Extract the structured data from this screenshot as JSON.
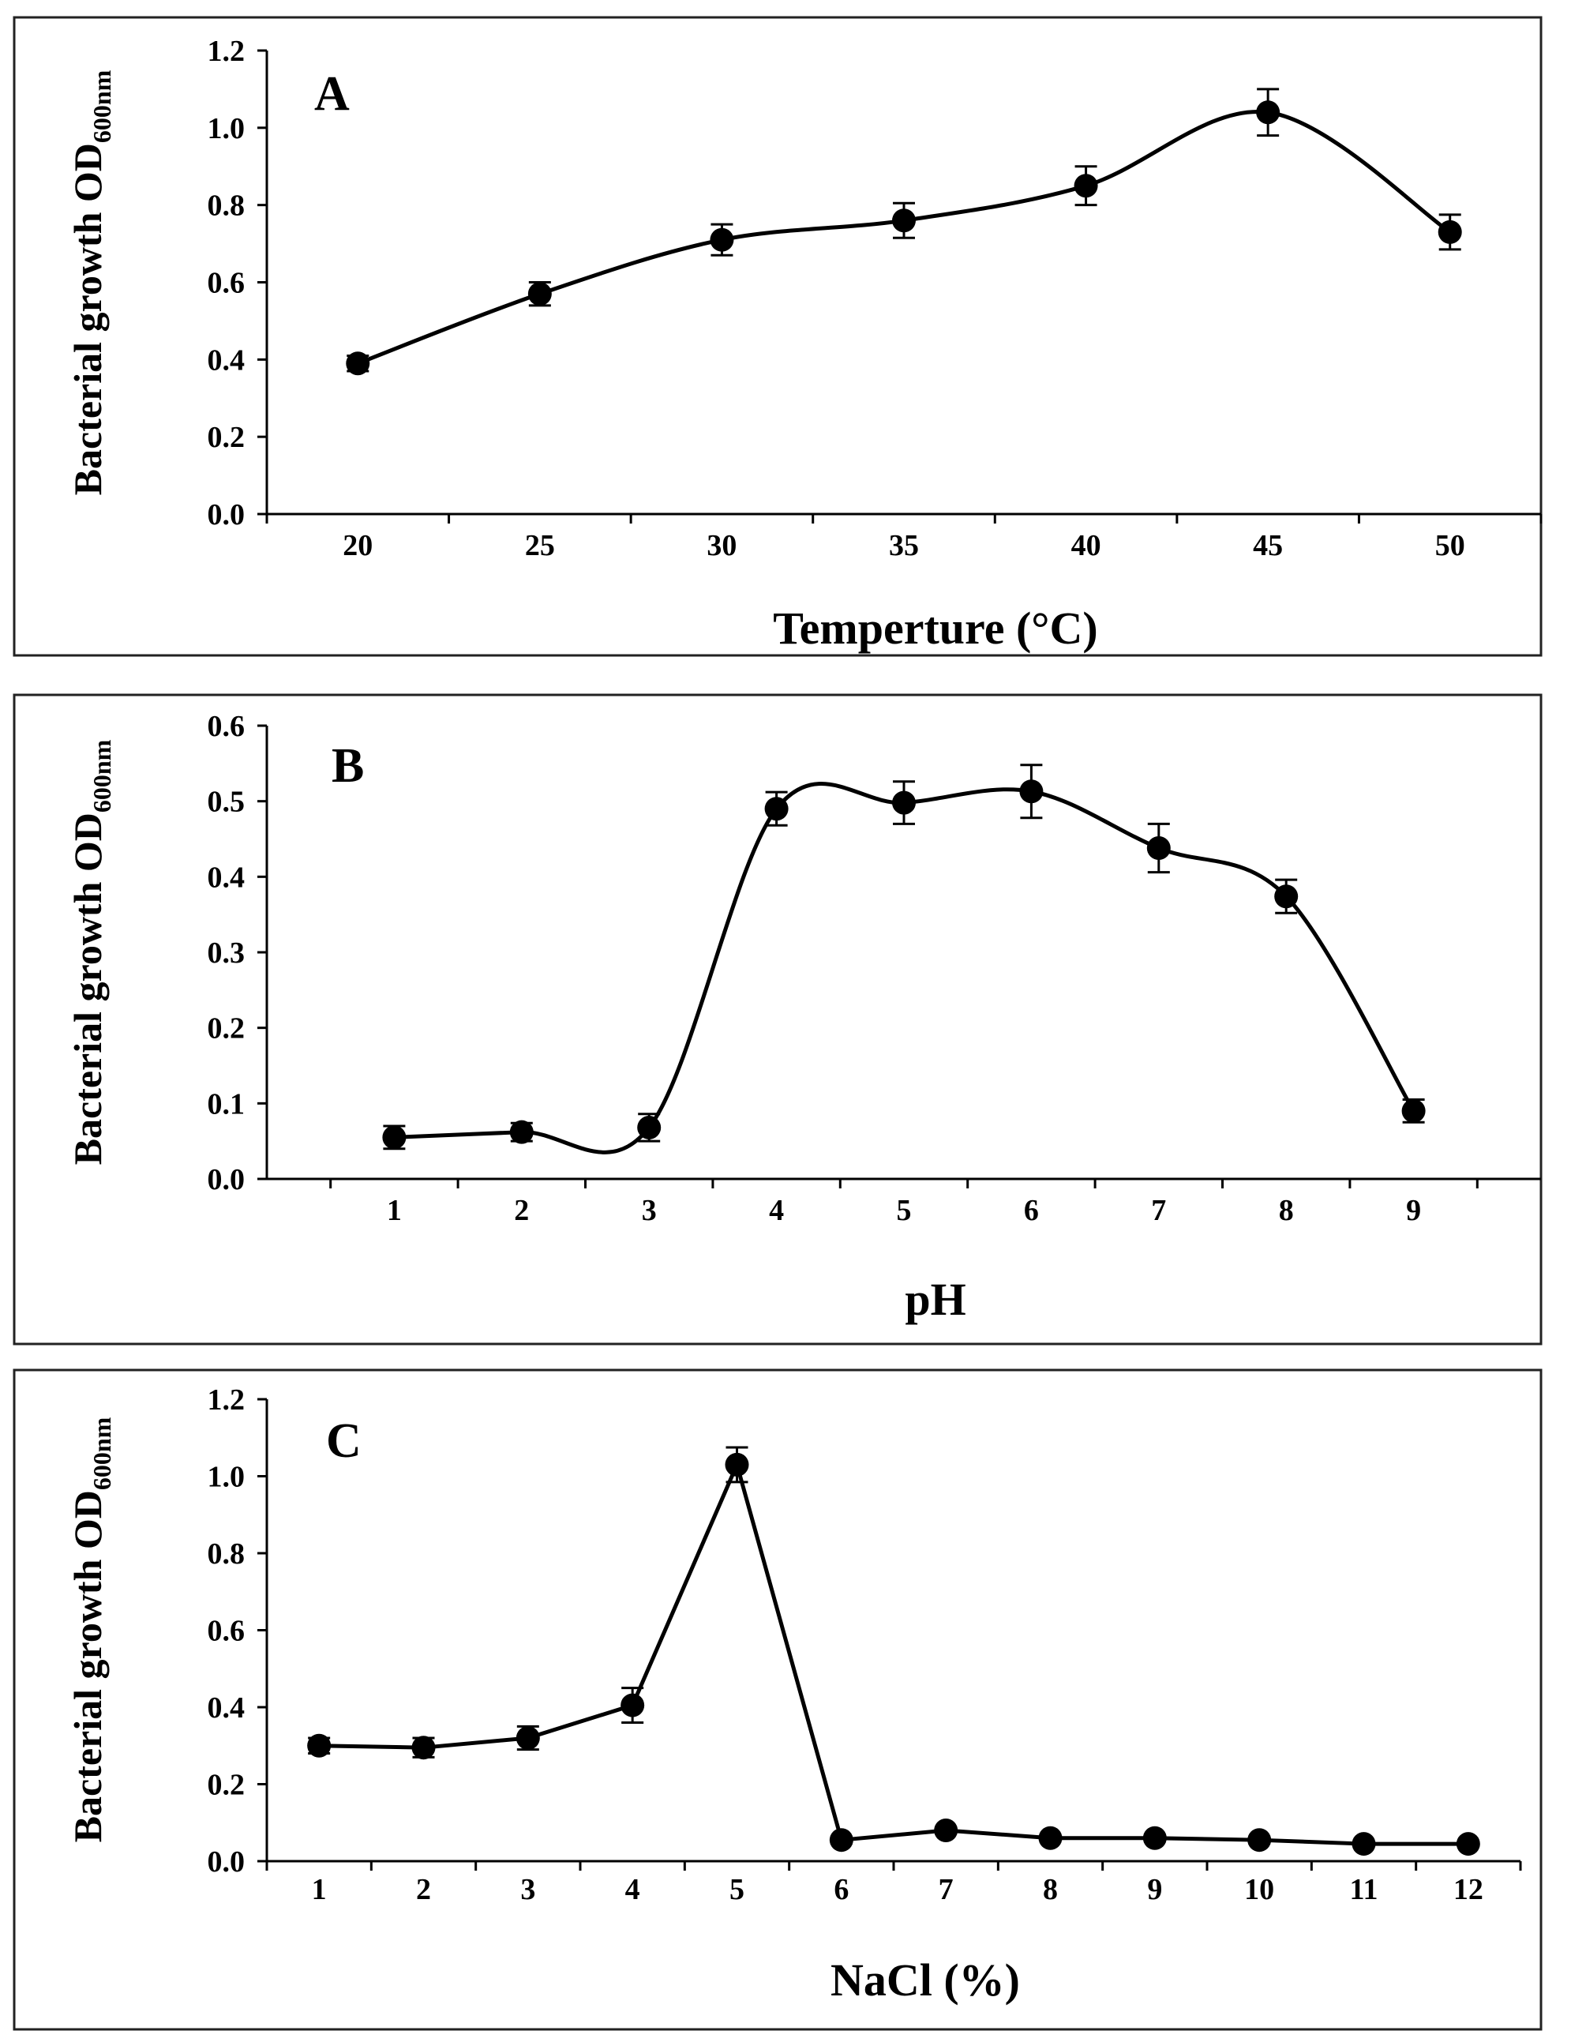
{
  "figure": {
    "panels_count": 3
  },
  "chart_data": [
    {
      "type": "line",
      "panel_label": "A",
      "xlabel": "Temperture (°C)",
      "ylabel": "Bacterial growth OD",
      "ylabel_subscript": "600nm",
      "categories": [
        "20",
        "25",
        "30",
        "35",
        "40",
        "45",
        "50"
      ],
      "x": [
        20,
        25,
        30,
        35,
        40,
        45,
        50
      ],
      "values": [
        0.39,
        0.57,
        0.71,
        0.76,
        0.85,
        1.04,
        0.73
      ],
      "errors": [
        0.02,
        0.03,
        0.04,
        0.045,
        0.05,
        0.06,
        0.045
      ],
      "ylim": [
        0,
        1.2
      ],
      "yticks": [
        "0.0",
        "0.2",
        "0.4",
        "0.6",
        "0.8",
        "1.0",
        "1.2"
      ],
      "smooth": true,
      "grid": false,
      "series": [
        {
          "name": "Temperature",
          "values": [
            0.39,
            0.57,
            0.71,
            0.76,
            0.85,
            1.04,
            0.73
          ]
        }
      ]
    },
    {
      "type": "line",
      "panel_label": "B",
      "xlabel": "pH",
      "ylabel": "Bacterial growth OD",
      "ylabel_subscript": "600nm",
      "categories": [
        "1",
        "2",
        "3",
        "4",
        "5",
        "6",
        "7",
        "8",
        "9"
      ],
      "x": [
        1,
        2,
        3,
        4,
        5,
        6,
        7,
        8,
        9
      ],
      "values": [
        0.055,
        0.062,
        0.068,
        0.49,
        0.498,
        0.513,
        0.438,
        0.374,
        0.09
      ],
      "errors": [
        0.015,
        0.012,
        0.018,
        0.022,
        0.028,
        0.035,
        0.032,
        0.022,
        0.015
      ],
      "ylim": [
        0,
        0.6
      ],
      "yticks": [
        "0.0",
        "0.1",
        "0.2",
        "0.3",
        "0.4",
        "0.5",
        "0.6"
      ],
      "smooth": true,
      "grid": false,
      "series": [
        {
          "name": "pH",
          "values": [
            0.055,
            0.062,
            0.068,
            0.49,
            0.498,
            0.513,
            0.438,
            0.374,
            0.09
          ]
        }
      ]
    },
    {
      "type": "line",
      "panel_label": "C",
      "xlabel": "NaCl (%)",
      "ylabel": "Bacterial growth OD",
      "ylabel_subscript": "600nm",
      "categories": [
        "1",
        "2",
        "3",
        "4",
        "5",
        "6",
        "7",
        "8",
        "9",
        "10",
        "11",
        "12"
      ],
      "x": [
        1,
        2,
        3,
        4,
        5,
        6,
        7,
        8,
        9,
        10,
        11,
        12
      ],
      "values": [
        0.3,
        0.295,
        0.32,
        0.405,
        1.03,
        0.055,
        0.08,
        0.06,
        0.06,
        0.055,
        0.045,
        0.045
      ],
      "errors": [
        0.02,
        0.025,
        0.03,
        0.045,
        0.045,
        0.008,
        0.008,
        0.008,
        0.008,
        0.008,
        0.006,
        0.006
      ],
      "ylim": [
        0,
        1.2
      ],
      "yticks": [
        "0.0",
        "0.2",
        "0.4",
        "0.6",
        "0.8",
        "1.0",
        "1.2"
      ],
      "smooth": false,
      "grid": false,
      "series": [
        {
          "name": "NaCl",
          "values": [
            0.3,
            0.295,
            0.32,
            0.405,
            1.03,
            0.055,
            0.08,
            0.06,
            0.06,
            0.055,
            0.045,
            0.045
          ]
        }
      ]
    }
  ]
}
